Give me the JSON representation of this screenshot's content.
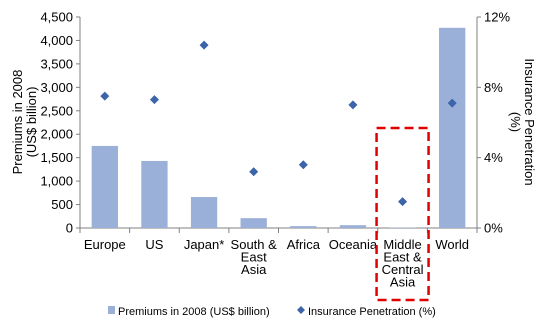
{
  "chart_data": {
    "type": "bar",
    "categories": [
      "Europe",
      "US",
      "Japan*",
      "South & East Asia",
      "Africa",
      "Oceania",
      "Middle East & Central Asia",
      "World"
    ],
    "category_lines": [
      [
        "Europe"
      ],
      [
        "US"
      ],
      [
        "Japan*"
      ],
      [
        "South &",
        "East",
        "Asia"
      ],
      [
        "Africa"
      ],
      [
        "Oceania"
      ],
      [
        "Middle",
        "East &",
        "Central",
        "Asia"
      ],
      [
        "World"
      ]
    ],
    "series": [
      {
        "name": "Premiums in 2008 (US$ billion)",
        "type": "bar",
        "axis": "left",
        "color": "#9bb0d8",
        "values": [
          1750,
          1430,
          660,
          210,
          40,
          60,
          10,
          4270
        ]
      },
      {
        "name": "Insurance Penetration (%)",
        "type": "scatter",
        "axis": "right",
        "color": "#3c64a8",
        "values": [
          7.5,
          7.3,
          10.4,
          3.2,
          3.6,
          7.0,
          1.5,
          7.1
        ]
      }
    ],
    "ylabel": "Premiums in 2008 (US$ billion)",
    "ylabel_lines": [
      "Premiums in 2008",
      "(US$ billion)"
    ],
    "ylim": [
      0,
      4500
    ],
    "yticks": [
      0,
      500,
      1000,
      1500,
      2000,
      2500,
      3000,
      3500,
      4000,
      4500
    ],
    "ytick_labels": [
      "0",
      "500",
      "1,000",
      "1,500",
      "2,000",
      "2,500",
      "3,000",
      "3,500",
      "4,000",
      "4,500"
    ],
    "y2label": "Insurance Penetration (%)",
    "y2label_lines": [
      "Insurance Penetration",
      "(%)"
    ],
    "y2lim": [
      0,
      12
    ],
    "y2ticks": [
      0,
      4,
      8,
      12
    ],
    "y2tick_labels": [
      "0%",
      "4%",
      "8%",
      "12%"
    ],
    "highlight_category": "Middle East & Central Asia",
    "highlight_color": "#e00000",
    "grid": false,
    "legend_position": "bottom"
  }
}
